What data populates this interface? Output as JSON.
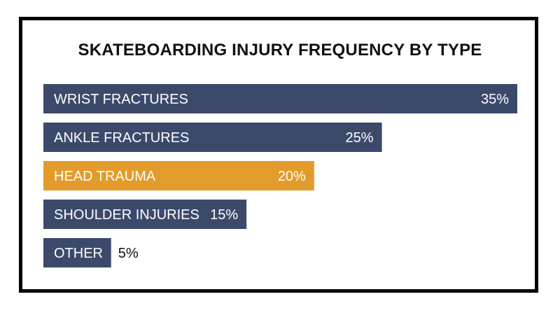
{
  "chart_data": {
    "type": "bar",
    "orientation": "horizontal",
    "title": "SKATEBOARDING INJURY FREQUENCY BY TYPE",
    "categories": [
      "WRIST FRACTURES",
      "ANKLE FRACTURES",
      "HEAD TRAUMA",
      "SHOULDER INJURIES",
      "OTHER"
    ],
    "values": [
      35,
      25,
      20,
      15,
      5
    ],
    "value_labels": [
      "35%",
      "25%",
      "20%",
      "15%",
      "5%"
    ],
    "unit": "%",
    "xlim": [
      0,
      35
    ],
    "grid": false,
    "legend": "none",
    "colors": {
      "default": "#3b4a6b",
      "highlight": "#e39b2b",
      "highlight_category": "HEAD TRAUMA"
    }
  }
}
